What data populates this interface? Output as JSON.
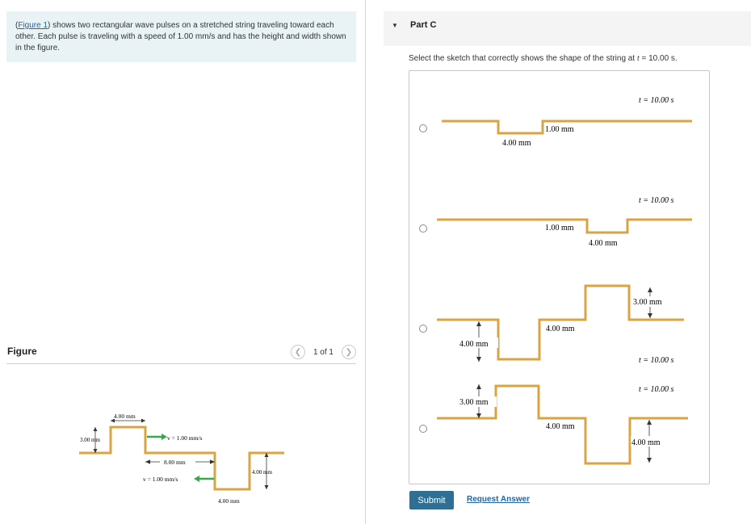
{
  "intro": {
    "figure_link": "Figure 1",
    "text_before": "(",
    "text_after": ") shows two rectangular wave pulses on a stretched string traveling toward each other. Each pulse is traveling with a speed of 1.00 mm/s and has the height and width shown in the figure."
  },
  "figure_panel": {
    "label": "Figure",
    "pager": "1 of 1",
    "prev_icon": "chevron-left-icon",
    "next_icon": "chevron-right-icon",
    "labels": {
      "left_width": "4.00 mm",
      "left_height": "3.00 mm",
      "left_speed": "v = 1.00 mm/s",
      "separation": "8.00 mm",
      "right_speed": "v = 1.00 mm/s",
      "right_height": "4.00 mm",
      "right_width": "4.00 mm"
    },
    "colors": {
      "string": "#d9a441",
      "arrow": "#3aa84a"
    }
  },
  "part": {
    "title": "Part C",
    "toggle_icon": "triangle-down-icon",
    "prompt_before": "Select the sketch that correctly shows the shape of the string at ",
    "prompt_var": "t",
    "prompt_after": " = 10.00 s."
  },
  "options": [
    {
      "time": "t = 10.00 s",
      "labels": [
        "1.00 mm",
        "4.00 mm"
      ]
    },
    {
      "time": "t = 10.00 s",
      "labels": [
        "1.00 mm",
        "4.00 mm"
      ]
    },
    {
      "time": "t = 10.00 s",
      "labels": [
        "3.00 mm",
        "4.00 mm",
        "4.00 mm"
      ]
    },
    {
      "time": "t = 10.00 s",
      "labels": [
        "3.00 mm",
        "4.00 mm",
        "4.00 mm"
      ]
    }
  ],
  "actions": {
    "submit": "Submit",
    "request": "Request Answer"
  }
}
